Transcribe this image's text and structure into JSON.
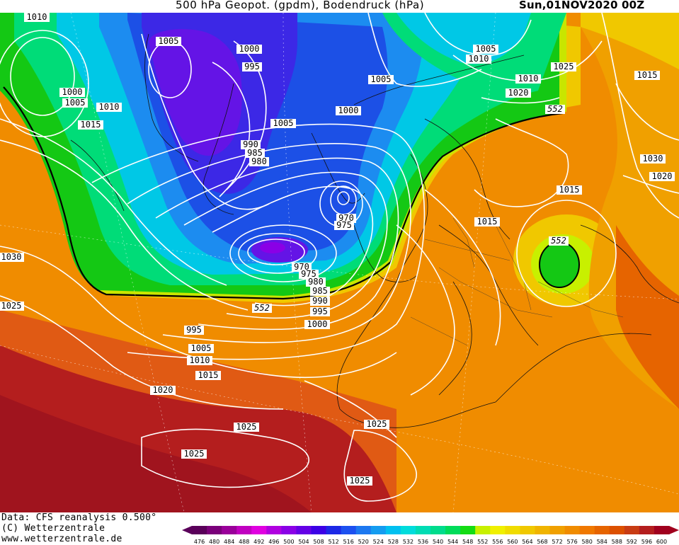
{
  "header": {
    "title": "500 hPa Geopot. (gpdm), Bodendruck (hPa)",
    "datetime": "Sun,01NOV2020 00Z"
  },
  "footer": {
    "data_source": "Data: CFS reanalysis 0.500°",
    "copyright": "(C) Wetterzentrale",
    "website": "www.wetterzentrale.de"
  },
  "legend": {
    "values": [
      "476",
      "480",
      "484",
      "488",
      "492",
      "496",
      "500",
      "504",
      "508",
      "512",
      "516",
      "520",
      "524",
      "528",
      "532",
      "536",
      "540",
      "544",
      "548",
      "552",
      "556",
      "560",
      "564",
      "568",
      "572",
      "576",
      "580",
      "584",
      "588",
      "592",
      "596",
      "600"
    ],
    "colors": [
      "#5a005a",
      "#7a007a",
      "#9a009a",
      "#c000c0",
      "#e000e0",
      "#b000e0",
      "#8a00e6",
      "#6400e6",
      "#3c00e6",
      "#1c28e6",
      "#1c50f0",
      "#1c78f0",
      "#149cf0",
      "#00c0f0",
      "#00dcdc",
      "#00dcb4",
      "#00dc8c",
      "#00dc5a",
      "#14dc14",
      "#c8f000",
      "#f0f000",
      "#f0dc00",
      "#f0c800",
      "#f0b400",
      "#f0a000",
      "#f08c00",
      "#f07800",
      "#e66400",
      "#dc5000",
      "#c83c14",
      "#b41e1e",
      "#a0001e"
    ]
  },
  "map_labels": {
    "isobars": [
      "1010",
      "1005",
      "1000",
      "1005",
      "1010",
      "1015",
      "1030",
      "1025",
      "1005",
      "1000",
      "995",
      "990",
      "985",
      "980",
      "1005",
      "1000",
      "970",
      "975",
      "970",
      "975",
      "980",
      "985",
      "990",
      "995",
      "1000",
      "995",
      "1005",
      "1010",
      "1015",
      "1020",
      "1025",
      "1025",
      "1025",
      "1025",
      "1010",
      "1005",
      "1010",
      "1020",
      "1025",
      "1015",
      "1030",
      "1020",
      "1015",
      "1015",
      "1025"
    ],
    "contour_552": [
      "552",
      "552",
      "552"
    ]
  }
}
